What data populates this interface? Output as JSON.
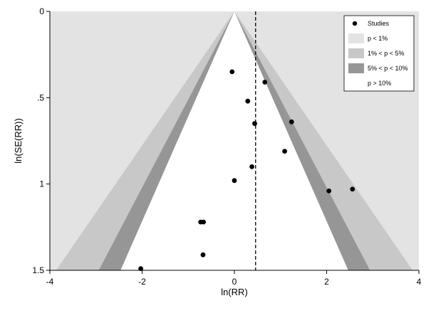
{
  "chart_data": {
    "type": "scatter",
    "title": "",
    "xlabel": "ln(RR)",
    "ylabel": "ln(SE(RR))",
    "xlim": [
      -4,
      4
    ],
    "ylim": [
      0,
      1.5
    ],
    "y_reversed": true,
    "x_ticks": [
      {
        "value": -4,
        "label": "-4"
      },
      {
        "value": -2,
        "label": "-2"
      },
      {
        "value": 0,
        "label": "0"
      },
      {
        "value": 2,
        "label": "2"
      },
      {
        "value": 4,
        "label": "4"
      }
    ],
    "y_ticks": [
      {
        "value": 0,
        "label": "0"
      },
      {
        "value": 0.5,
        "label": ".5"
      },
      {
        "value": 1,
        "label": "1"
      },
      {
        "value": 1.5,
        "label": "1.5"
      }
    ],
    "pooled_estimate": 0.46,
    "contour_z": {
      "p1": 2.576,
      "p5": 1.96,
      "p10": 1.645
    },
    "contour_colors": {
      "outer": "#e3e3e3",
      "p1_5": "#c8c8c8",
      "p5_10": "#969696",
      "inner": "#ffffff"
    },
    "grid": false,
    "legend_position": "top-right",
    "legend": [
      {
        "key": "studies",
        "label": "Studies",
        "color": "#000000"
      },
      {
        "key": "p1",
        "label": "p < 1%",
        "color": "#e3e3e3"
      },
      {
        "key": "p1_5",
        "label": "1% < p < 5%",
        "color": "#c8c8c8"
      },
      {
        "key": "p5_10",
        "label": "5% < p < 10%",
        "color": "#969696"
      },
      {
        "key": "p10",
        "label": "p > 10%",
        "color": "#ffffff"
      }
    ],
    "points": [
      {
        "x": -0.05,
        "y": 0.35
      },
      {
        "x": 0.66,
        "y": 0.41
      },
      {
        "x": 0.29,
        "y": 0.52
      },
      {
        "x": 0.44,
        "y": 0.65
      },
      {
        "x": 1.24,
        "y": 0.64
      },
      {
        "x": 1.09,
        "y": 0.81
      },
      {
        "x": 0.38,
        "y": 0.9
      },
      {
        "x": 0.0,
        "y": 0.98
      },
      {
        "x": 2.05,
        "y": 1.04
      },
      {
        "x": 2.56,
        "y": 1.03
      },
      {
        "x": -0.73,
        "y": 1.22
      },
      {
        "x": -0.67,
        "y": 1.22
      },
      {
        "x": -0.68,
        "y": 1.41
      },
      {
        "x": -2.03,
        "y": 1.49
      }
    ]
  }
}
